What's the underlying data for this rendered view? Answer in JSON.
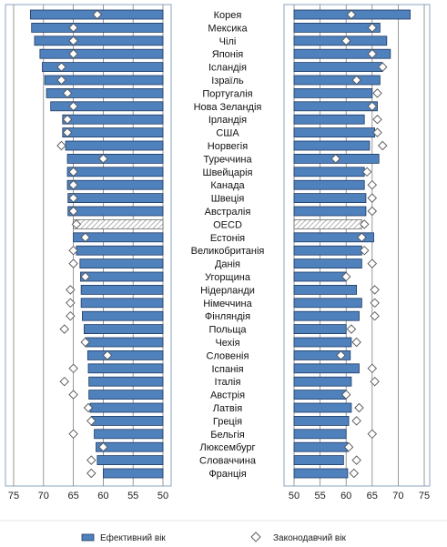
{
  "chart_data": {
    "type": "bar",
    "categories": [
      "Корея",
      "Мексика",
      "Чілі",
      "Японія",
      "Ісландія",
      "Ізраїль",
      "Португалія",
      "Нова Зеландія",
      "Ірландія",
      "США",
      "Норвегія",
      "Туреччина",
      "Швейцарія",
      "Канада",
      "Швеція",
      "Австралія",
      "OECD",
      "Естонія",
      "Великобританія",
      "Данія",
      "Угорщина",
      "Нідерланди",
      "Німеччина",
      "Фінляндія",
      "Польща",
      "Чехія",
      "Словенія",
      "Іспанія",
      "Італія",
      "Австрія",
      "Латвія",
      "Греція",
      "Бельгія",
      "Люксембург",
      "Словаччина",
      "Франція"
    ],
    "highlight_category": "OECD",
    "men": {
      "xlim": [
        75,
        50
      ],
      "ticks": [
        75,
        70,
        65,
        60,
        55,
        50
      ],
      "series": [
        {
          "name": "Ефективний вік",
          "kind": "bar",
          "values": [
            72.2,
            72.0,
            71.5,
            70.6,
            70.2,
            69.8,
            69.5,
            68.8,
            66.8,
            66.8,
            66.3,
            66.0,
            66.0,
            66.0,
            65.9,
            65.9,
            65.0,
            65.0,
            64.5,
            63.9,
            63.8,
            63.7,
            63.7,
            63.5,
            63.2,
            63.0,
            62.6,
            62.5,
            62.4,
            62.4,
            62.2,
            62.0,
            61.5,
            61.2,
            61.0,
            60.0
          ]
        },
        {
          "name": "Законодавчий вік",
          "kind": "marker",
          "values": [
            61.0,
            65.0,
            65.0,
            65.0,
            67.0,
            67.0,
            66.0,
            65.0,
            66.0,
            66.0,
            67.0,
            60.0,
            65.0,
            65.0,
            65.0,
            65.0,
            64.5,
            63.0,
            65.0,
            65.0,
            63.0,
            65.5,
            65.5,
            65.5,
            66.5,
            63.0,
            59.3,
            65.0,
            66.5,
            65.0,
            62.5,
            62.0,
            65.0,
            60.0,
            62.0,
            62.0
          ]
        }
      ]
    },
    "women": {
      "xlim": [
        50,
        75
      ],
      "ticks": [
        50,
        55,
        60,
        65,
        70,
        75
      ],
      "series": [
        {
          "name": "Ефективний вік",
          "kind": "bar",
          "values": [
            72.3,
            66.5,
            67.8,
            68.5,
            67.0,
            66.5,
            65.0,
            66.0,
            63.5,
            65.5,
            64.5,
            66.3,
            63.5,
            63.5,
            63.8,
            63.8,
            63.0,
            65.3,
            63.0,
            63.0,
            60.0,
            62.0,
            63.0,
            62.5,
            60.0,
            61.0,
            60.8,
            62.5,
            61.0,
            60.0,
            61.0,
            60.5,
            60.0,
            60.3,
            59.5,
            60.3
          ]
        },
        {
          "name": "Законодавчий вік",
          "kind": "marker",
          "values": [
            61.0,
            65.0,
            60.0,
            65.0,
            67.0,
            62.0,
            66.0,
            65.0,
            66.0,
            66.0,
            67.0,
            58.0,
            64.0,
            65.0,
            65.0,
            65.0,
            63.5,
            63.0,
            63.5,
            65.0,
            60.0,
            65.5,
            65.5,
            65.5,
            61.0,
            62.0,
            59.0,
            65.0,
            65.5,
            60.0,
            62.5,
            62.0,
            65.0,
            60.5,
            62.0,
            61.5
          ]
        }
      ]
    },
    "legend": [
      "Ефективний вік",
      "Законодавчий вік"
    ],
    "legend_position": "bottom",
    "grid": "vertical"
  },
  "colors": {
    "bar_fill": "#4f81bd",
    "bar_stroke": "#1f3a63",
    "hatch": "#9a9a9a",
    "marker_fill": "#ffffff",
    "marker_stroke": "#555555",
    "grid": "#808080",
    "frame": "#9fb4cc"
  }
}
